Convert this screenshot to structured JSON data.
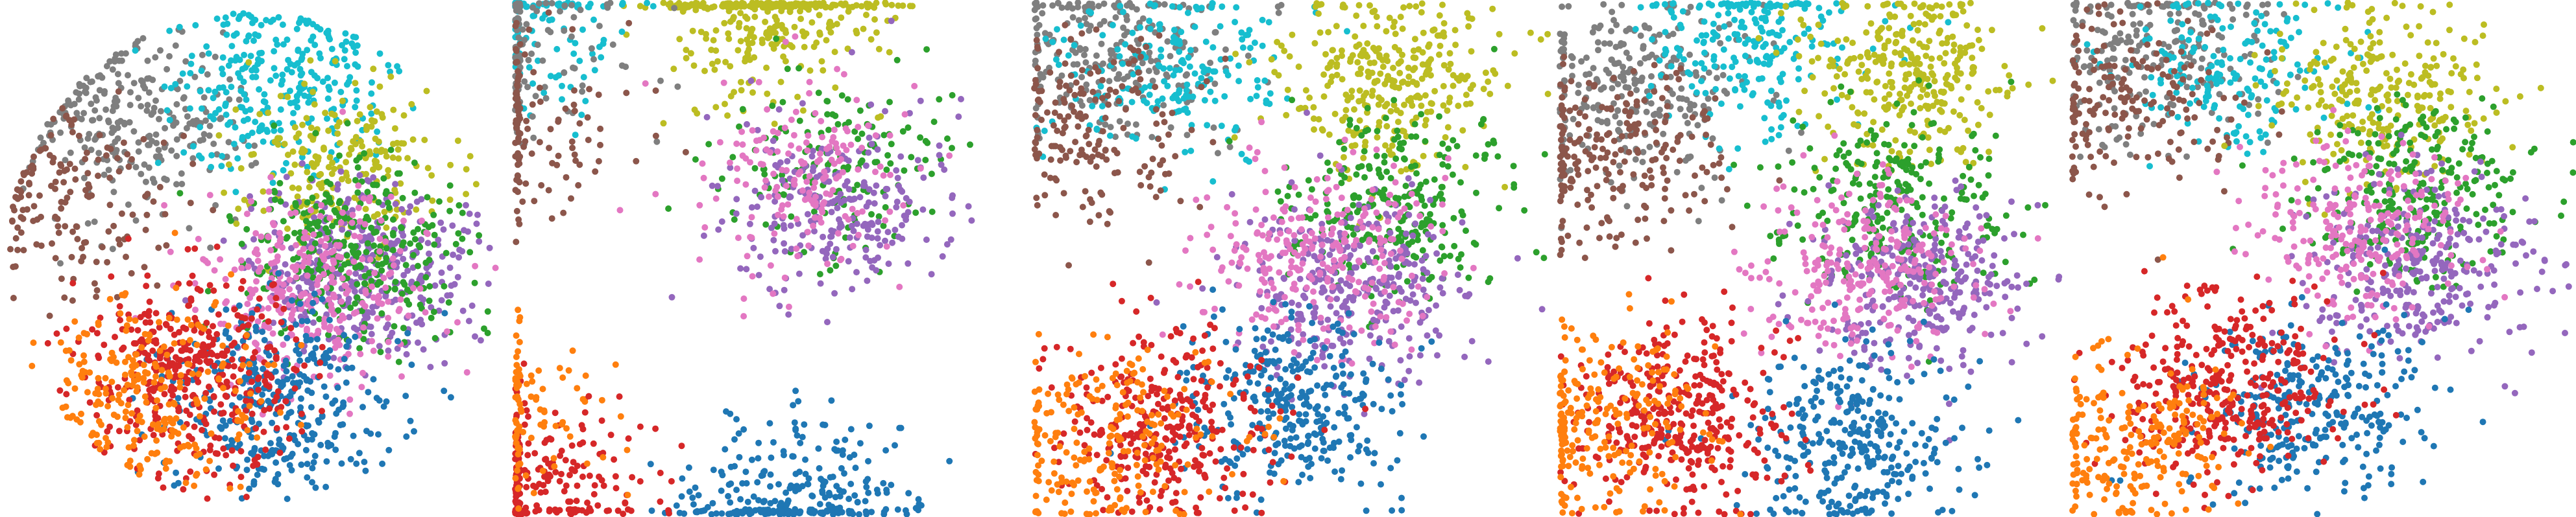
{
  "figure": {
    "title": "",
    "description_visible_text": ""
  },
  "chart_data": [
    {
      "type": "scatter",
      "title": "",
      "xlabel": "",
      "ylabel": "",
      "grid": false,
      "axes_visible": false,
      "legend": "none",
      "clusters": [
        {
          "color": "#7f7f7f",
          "centroid": [
            0.26,
            0.23
          ],
          "approx_points": 600
        },
        {
          "color": "#8c564b",
          "centroid": [
            0.14,
            0.38
          ],
          "approx_points": 350
        },
        {
          "color": "#17becf",
          "centroid": [
            0.56,
            0.17
          ],
          "approx_points": 650
        },
        {
          "color": "#bcbd22",
          "centroid": [
            0.68,
            0.32
          ],
          "approx_points": 500
        },
        {
          "color": "#9467bd",
          "centroid": [
            0.72,
            0.52
          ],
          "approx_points": 800
        },
        {
          "color": "#2ca02c",
          "centroid": [
            0.7,
            0.48
          ],
          "approx_points": 700
        },
        {
          "color": "#e377c2",
          "centroid": [
            0.62,
            0.55
          ],
          "approx_points": 650
        },
        {
          "color": "#1f77b4",
          "centroid": [
            0.55,
            0.78
          ],
          "approx_points": 800
        },
        {
          "color": "#d62728",
          "centroid": [
            0.38,
            0.72
          ],
          "approx_points": 900
        },
        {
          "color": "#ff7f0e",
          "centroid": [
            0.3,
            0.76
          ],
          "approx_points": 550
        }
      ]
    },
    {
      "type": "scatter",
      "title": "",
      "xlabel": "",
      "ylabel": "",
      "grid": false,
      "axes_visible": false,
      "legend": "none",
      "clusters": [
        {
          "color": "#bcbd22",
          "centroid": [
            0.5,
            0.02
          ],
          "approx_points": 700
        },
        {
          "color": "#17becf",
          "centroid": [
            0.05,
            0.03
          ],
          "approx_points": 250
        },
        {
          "color": "#7f7f7f",
          "centroid": [
            0.01,
            0.1
          ],
          "approx_points": 250
        },
        {
          "color": "#8c564b",
          "centroid": [
            0.01,
            0.25
          ],
          "approx_points": 250
        },
        {
          "color": "#2ca02c",
          "centroid": [
            0.62,
            0.3
          ],
          "approx_points": 350
        },
        {
          "color": "#9467bd",
          "centroid": [
            0.62,
            0.4
          ],
          "approx_points": 550
        },
        {
          "color": "#e377c2",
          "centroid": [
            0.58,
            0.35
          ],
          "approx_points": 400
        },
        {
          "color": "#1f77b4",
          "centroid": [
            0.55,
            0.96
          ],
          "approx_points": 600
        },
        {
          "color": "#d62728",
          "centroid": [
            0.06,
            0.93
          ],
          "approx_points": 500
        },
        {
          "color": "#ff7f0e",
          "centroid": [
            0.01,
            0.8
          ],
          "approx_points": 200
        }
      ]
    },
    {
      "type": "scatter",
      "title": "",
      "xlabel": "",
      "ylabel": "",
      "grid": false,
      "axes_visible": false,
      "legend": "none",
      "clusters": [
        {
          "color": "#7f7f7f",
          "centroid": [
            0.15,
            0.1
          ],
          "approx_points": 550
        },
        {
          "color": "#17becf",
          "centroid": [
            0.27,
            0.13
          ],
          "approx_points": 450
        },
        {
          "color": "#8c564b",
          "centroid": [
            0.12,
            0.24
          ],
          "approx_points": 400
        },
        {
          "color": "#bcbd22",
          "centroid": [
            0.68,
            0.16
          ],
          "approx_points": 700
        },
        {
          "color": "#2ca02c",
          "centroid": [
            0.7,
            0.4
          ],
          "approx_points": 600
        },
        {
          "color": "#9467bd",
          "centroid": [
            0.62,
            0.55
          ],
          "approx_points": 700
        },
        {
          "color": "#e377c2",
          "centroid": [
            0.55,
            0.5
          ],
          "approx_points": 600
        },
        {
          "color": "#1f77b4",
          "centroid": [
            0.5,
            0.78
          ],
          "approx_points": 700
        },
        {
          "color": "#d62728",
          "centroid": [
            0.26,
            0.82
          ],
          "approx_points": 700
        },
        {
          "color": "#ff7f0e",
          "centroid": [
            0.14,
            0.86
          ],
          "approx_points": 500
        }
      ]
    },
    {
      "type": "scatter",
      "title": "",
      "xlabel": "",
      "ylabel": "",
      "grid": false,
      "axes_visible": false,
      "legend": "none",
      "clusters": [
        {
          "color": "#7f7f7f",
          "centroid": [
            0.16,
            0.18
          ],
          "approx_points": 600
        },
        {
          "color": "#17becf",
          "centroid": [
            0.38,
            0.08
          ],
          "approx_points": 500
        },
        {
          "color": "#8c564b",
          "centroid": [
            0.1,
            0.3
          ],
          "approx_points": 500
        },
        {
          "color": "#bcbd22",
          "centroid": [
            0.7,
            0.14
          ],
          "approx_points": 700
        },
        {
          "color": "#2ca02c",
          "centroid": [
            0.66,
            0.4
          ],
          "approx_points": 600
        },
        {
          "color": "#9467bd",
          "centroid": [
            0.72,
            0.55
          ],
          "approx_points": 650
        },
        {
          "color": "#e377c2",
          "centroid": [
            0.6,
            0.52
          ],
          "approx_points": 600
        },
        {
          "color": "#1f77b4",
          "centroid": [
            0.58,
            0.85
          ],
          "approx_points": 700
        },
        {
          "color": "#d62728",
          "centroid": [
            0.25,
            0.8
          ],
          "approx_points": 800
        },
        {
          "color": "#ff7f0e",
          "centroid": [
            0.1,
            0.82
          ],
          "approx_points": 500
        }
      ]
    },
    {
      "type": "scatter",
      "title": "",
      "xlabel": "",
      "ylabel": "",
      "grid": false,
      "axes_visible": false,
      "legend": "none",
      "clusters": [
        {
          "color": "#7f7f7f",
          "centroid": [
            0.18,
            0.1
          ],
          "approx_points": 500
        },
        {
          "color": "#17becf",
          "centroid": [
            0.32,
            0.12
          ],
          "approx_points": 400
        },
        {
          "color": "#8c564b",
          "centroid": [
            0.12,
            0.2
          ],
          "approx_points": 400
        },
        {
          "color": "#bcbd22",
          "centroid": [
            0.62,
            0.2
          ],
          "approx_points": 600
        },
        {
          "color": "#2ca02c",
          "centroid": [
            0.68,
            0.38
          ],
          "approx_points": 600
        },
        {
          "color": "#9467bd",
          "centroid": [
            0.7,
            0.52
          ],
          "approx_points": 650
        },
        {
          "color": "#e377c2",
          "centroid": [
            0.58,
            0.45
          ],
          "approx_points": 550
        },
        {
          "color": "#1f77b4",
          "centroid": [
            0.48,
            0.78
          ],
          "approx_points": 650
        },
        {
          "color": "#d62728",
          "centroid": [
            0.3,
            0.75
          ],
          "approx_points": 800
        },
        {
          "color": "#ff7f0e",
          "centroid": [
            0.12,
            0.85
          ],
          "approx_points": 500
        }
      ]
    }
  ]
}
